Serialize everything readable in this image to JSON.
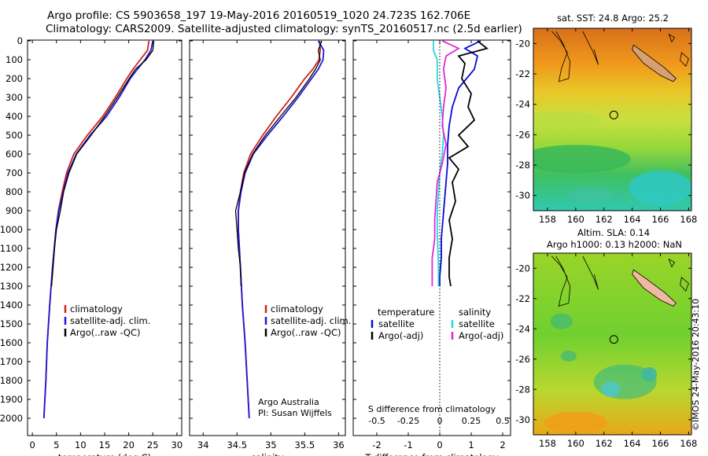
{
  "title": {
    "line1": "Argo profile: CS 5903658_197 19-May-2016 20160519_1020 24.723S 162.706E",
    "line2": "Climatology: CARS2009. Satellite-adjusted climatology: synTS_20160517.nc (2.5d earlier)"
  },
  "stamp": "©IMOS 24-May-2016 20:43:10",
  "colors": {
    "climatology": "#d42020",
    "satellite": "#1a1ad8",
    "argo": "#000000",
    "sat_t": "#0a0ad8",
    "sat_s": "#29d6e0",
    "argo_s": "#e02ad8"
  },
  "chart_data": [
    {
      "type": "line",
      "name": "temperature-profile",
      "xlabel": "temperature (deg C)",
      "ylabel": "",
      "xlim": [
        -1,
        31
      ],
      "ylim": [
        0,
        2070
      ],
      "xticks": [
        "0",
        "5",
        "10",
        "15",
        "20",
        "25",
        "30"
      ],
      "yticks": [
        "0",
        "100",
        "200",
        "300",
        "400",
        "500",
        "600",
        "700",
        "800",
        "900",
        "1000",
        "1100",
        "1200",
        "1300",
        "1400",
        "1500",
        "1600",
        "1700",
        "1800",
        "1900",
        "2000"
      ],
      "legend": [
        "climatology",
        "satellite-adj. clim.",
        "Argo(..raw -QC)"
      ],
      "series": [
        {
          "name": "climatology",
          "depth": [
            0,
            50,
            100,
            150,
            200,
            300,
            400,
            500,
            600,
            700,
            800,
            900,
            1000,
            1200,
            1400,
            1600,
            1800,
            2000
          ],
          "values": [
            24.2,
            23.9,
            22.4,
            20.9,
            19.6,
            17.2,
            14.6,
            11.4,
            8.6,
            7.1,
            6.2,
            5.4,
            4.9,
            4.2,
            3.6,
            3.1,
            2.8,
            2.4
          ]
        },
        {
          "name": "satellite-adj. clim.",
          "depth": [
            0,
            50,
            100,
            150,
            200,
            300,
            400,
            500,
            600,
            700,
            800,
            900,
            1000,
            1200,
            1400,
            1600,
            1800,
            2000
          ],
          "values": [
            25.0,
            24.6,
            23.4,
            21.8,
            20.3,
            18.0,
            15.4,
            12.0,
            9.1,
            7.4,
            6.4,
            5.5,
            4.9,
            4.2,
            3.6,
            3.1,
            2.8,
            2.4
          ]
        },
        {
          "name": "Argo(..raw -QC)",
          "depth": [
            0,
            50,
            100,
            150,
            200,
            300,
            400,
            500,
            600,
            700,
            800,
            900,
            1000,
            1100,
            1200,
            1300
          ],
          "values": [
            25.2,
            25.0,
            23.6,
            21.4,
            20.1,
            17.6,
            15.0,
            12.2,
            9.2,
            7.6,
            6.5,
            5.8,
            5.0,
            4.6,
            4.3,
            4.0
          ]
        }
      ]
    },
    {
      "type": "line",
      "name": "salinity-profile",
      "xlabel": "salinity",
      "xlim": [
        33.8,
        36.1
      ],
      "ylim": [
        0,
        2070
      ],
      "xticks": [
        "34",
        "34.5",
        "35",
        "35.5",
        "36"
      ],
      "legend": [
        "climatology",
        "satellite-adj. clim.",
        "Argo(..raw -QC)"
      ],
      "annotation": [
        "Argo Australia",
        "PI: Susan Wijffels"
      ],
      "series": [
        {
          "name": "climatology",
          "depth": [
            0,
            50,
            100,
            150,
            200,
            300,
            400,
            500,
            600,
            700,
            800,
            900,
            1000,
            1200,
            1400,
            1600,
            1800,
            2000
          ],
          "values": [
            35.72,
            35.73,
            35.71,
            35.62,
            35.5,
            35.3,
            35.08,
            34.88,
            34.7,
            34.6,
            34.55,
            34.52,
            34.52,
            34.55,
            34.58,
            34.62,
            34.65,
            34.68
          ]
        },
        {
          "name": "satellite-adj. clim.",
          "depth": [
            0,
            50,
            100,
            150,
            200,
            300,
            400,
            500,
            600,
            700,
            800,
            900,
            1000,
            1200,
            1400,
            1600,
            1800,
            2000
          ],
          "values": [
            35.7,
            35.78,
            35.77,
            35.7,
            35.6,
            35.4,
            35.18,
            34.95,
            34.74,
            34.62,
            34.56,
            34.52,
            34.52,
            34.55,
            34.58,
            34.62,
            34.65,
            34.68
          ]
        },
        {
          "name": "Argo(..raw -QC)",
          "depth": [
            0,
            50,
            100,
            150,
            200,
            300,
            400,
            500,
            600,
            700,
            800,
            900,
            1000,
            1100,
            1200,
            1300
          ],
          "values": [
            35.75,
            35.7,
            35.73,
            35.66,
            35.57,
            35.37,
            35.14,
            34.92,
            34.73,
            34.61,
            34.55,
            34.48,
            34.5,
            34.52,
            34.55,
            34.56
          ]
        }
      ]
    },
    {
      "type": "line",
      "name": "difference-profile",
      "xlabel": "T difference from climatology",
      "xlabel_top": "S difference from climatology",
      "xlim": [
        -2.75,
        2.25
      ],
      "ylim": [
        0,
        2070
      ],
      "xticks": [
        "-2",
        "-1",
        "0",
        "1",
        "2"
      ],
      "xticks_top": [
        "-0.5",
        "-0.25",
        "0",
        "0.25",
        "0.5"
      ],
      "legend_titles": [
        "temperature",
        "salinity"
      ],
      "legend": [
        "satellite",
        "Argo(-adj)",
        "satellite",
        "Argo(-adj)"
      ],
      "series": [
        {
          "name": "T satellite",
          "depth": [
            0,
            40,
            80,
            150,
            250,
            350,
            450,
            550,
            650,
            750,
            850,
            950,
            1050,
            1150,
            1250,
            1300
          ],
          "values": [
            1.3,
            0.8,
            1.2,
            1.1,
            0.6,
            0.4,
            0.3,
            0.25,
            0.25,
            0.2,
            0.15,
            0.1,
            0.05,
            0.05,
            0.0,
            0.0
          ]
        },
        {
          "name": "T Argo(-adj)",
          "depth": [
            0,
            40,
            80,
            120,
            200,
            280,
            350,
            420,
            500,
            560,
            620,
            680,
            750,
            850,
            950,
            1050,
            1150,
            1250,
            1300
          ],
          "values": [
            1.2,
            1.5,
            0.6,
            0.8,
            0.7,
            1.0,
            0.9,
            1.1,
            0.6,
            0.9,
            0.3,
            0.6,
            0.4,
            0.5,
            0.3,
            0.4,
            0.3,
            0.3,
            0.35
          ]
        },
        {
          "name": "S satellite",
          "depth": [
            0,
            50,
            100,
            200,
            300,
            400,
            500,
            600,
            700,
            800,
            900,
            1000,
            1200,
            1300
          ],
          "values": [
            -0.05,
            -0.05,
            -0.02,
            -0.02,
            0.0,
            0.02,
            0.03,
            0.02,
            0.0,
            -0.01,
            -0.02,
            -0.02,
            -0.01,
            -0.01
          ]
        },
        {
          "name": "S Argo(-adj)",
          "depth": [
            0,
            40,
            80,
            150,
            250,
            350,
            450,
            550,
            650,
            750,
            850,
            950,
            1050,
            1150,
            1250,
            1300
          ],
          "values": [
            0.02,
            0.15,
            0.05,
            0.03,
            0.05,
            0.03,
            0.02,
            0.05,
            0.02,
            -0.02,
            -0.03,
            -0.04,
            -0.04,
            -0.06,
            -0.06,
            -0.06
          ]
        }
      ]
    },
    {
      "type": "heatmap",
      "name": "sst-map",
      "title": "sat. SST: 24.8 Argo: 25.2",
      "xlim": [
        157,
        168.2
      ],
      "ylim": [
        -31,
        -19
      ],
      "xticks": [
        "158",
        "160",
        "162",
        "164",
        "166",
        "168"
      ],
      "yticks": [
        "-20",
        "-22",
        "-24",
        "-26",
        "-28",
        "-30"
      ],
      "marker": {
        "lon": 162.7,
        "lat": -24.7
      }
    },
    {
      "type": "heatmap",
      "name": "sla-map",
      "title": "Altim. SLA: 0.14",
      "subtitle": "Argo h1000: 0.13 h2000: NaN",
      "xlim": [
        157,
        168.2
      ],
      "ylim": [
        -31,
        -19
      ],
      "xticks": [
        "158",
        "160",
        "162",
        "164",
        "166",
        "168"
      ],
      "yticks": [
        "-20",
        "-22",
        "-24",
        "-26",
        "-28",
        "-30"
      ],
      "marker": {
        "lon": 162.7,
        "lat": -24.7
      }
    }
  ]
}
